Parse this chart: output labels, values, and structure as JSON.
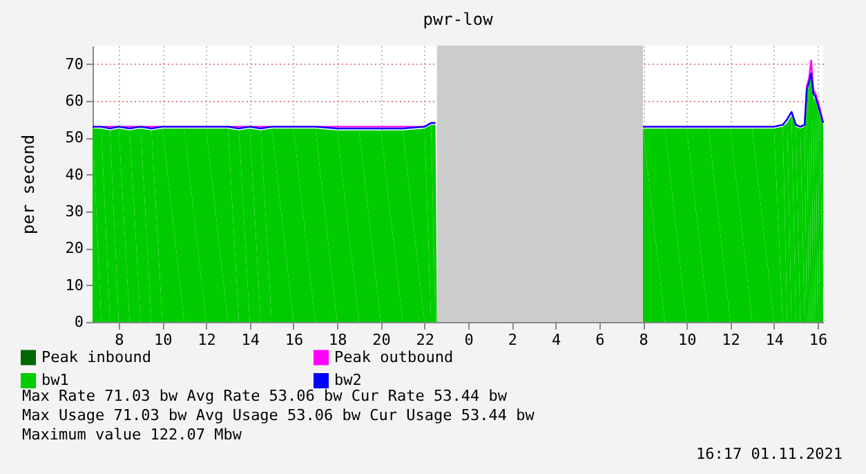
{
  "chart_data": {
    "type": "line",
    "title": "pwr-low",
    "ylabel": "per second",
    "x": [
      "2021-10-31T06:48",
      "2021-10-31T07:12",
      "2021-10-31T07:36",
      "2021-10-31T08:00",
      "2021-10-31T08:30",
      "2021-10-31T09:00",
      "2021-10-31T09:30",
      "2021-10-31T10:00",
      "2021-10-31T11:00",
      "2021-10-31T12:00",
      "2021-10-31T13:00",
      "2021-10-31T13:30",
      "2021-10-31T14:00",
      "2021-10-31T14:30",
      "2021-10-31T15:00",
      "2021-10-31T16:00",
      "2021-10-31T17:00",
      "2021-10-31T18:00",
      "2021-10-31T19:00",
      "2021-10-31T20:00",
      "2021-10-31T21:00",
      "2021-10-31T22:00",
      "2021-10-31T22:18",
      "2021-10-31T22:30",
      "2021-10-31T22:34",
      "2021-11-01T08:00",
      "2021-11-01T09:00",
      "2021-11-01T10:00",
      "2021-11-01T11:00",
      "2021-11-01T12:00",
      "2021-11-01T13:00",
      "2021-11-01T14:00",
      "2021-11-01T14:24",
      "2021-11-01T14:36",
      "2021-11-01T14:48",
      "2021-11-01T15:00",
      "2021-11-01T15:12",
      "2021-11-01T15:24",
      "2021-11-01T15:30",
      "2021-11-01T15:36",
      "2021-11-01T15:42",
      "2021-11-01T15:48",
      "2021-11-01T15:54",
      "2021-11-01T16:00",
      "2021-11-01T16:06",
      "2021-11-01T16:15"
    ],
    "series": [
      {
        "name": "Peak inbound",
        "color": "#006600",
        "values": [
          null,
          null,
          null,
          null,
          null,
          null,
          null,
          null,
          null,
          null,
          null,
          null,
          null,
          null,
          null,
          null,
          null,
          null,
          null,
          null,
          null,
          null,
          null,
          null,
          null,
          null,
          null,
          null,
          null,
          null,
          null,
          null,
          null,
          null,
          null,
          null,
          null,
          null,
          null,
          null,
          null,
          null,
          null,
          null,
          null,
          null
        ]
      },
      {
        "name": "bw1",
        "type": "area",
        "color": "#00cc00",
        "values": [
          52.5,
          52.5,
          52,
          52.5,
          52,
          52.5,
          52,
          52.5,
          52.5,
          52.5,
          52.5,
          52,
          52.5,
          52,
          52.5,
          52.5,
          52.5,
          52,
          52,
          52,
          52,
          52.5,
          53.5,
          53.5,
          null,
          52.5,
          52.5,
          52.5,
          52.5,
          52.5,
          52.5,
          52.5,
          53,
          54,
          56,
          53,
          52.5,
          53,
          62,
          64,
          66.5,
          61,
          60,
          58,
          56,
          53.5
        ]
      },
      {
        "name": "Peak outbound",
        "color": "#ff00ff",
        "values": [
          53,
          53,
          53,
          53,
          53,
          53,
          53,
          53,
          53,
          53,
          53,
          53,
          53,
          53,
          53,
          53,
          53,
          53,
          53,
          53,
          53,
          53,
          54,
          54,
          null,
          53,
          53,
          53,
          53,
          53,
          53,
          53,
          53.5,
          55,
          57,
          53.5,
          53,
          53.5,
          64,
          66,
          71,
          63,
          62,
          60,
          58,
          54
        ]
      },
      {
        "name": "bw2",
        "color": "#0000ff",
        "values": [
          53,
          53,
          52.5,
          53,
          52.5,
          53,
          52.5,
          53,
          53,
          53,
          53,
          52.5,
          53,
          52.5,
          53,
          53,
          53,
          52.5,
          52.5,
          52.5,
          52.5,
          53,
          54,
          54,
          null,
          53,
          53,
          53,
          53,
          53,
          53,
          53,
          53.5,
          55,
          57,
          53.5,
          53,
          53.5,
          63,
          65,
          67.5,
          62,
          61,
          59,
          57,
          54
        ]
      }
    ],
    "xlim": [
      "2021-10-31T06:48",
      "2021-11-01T16:15"
    ],
    "xticks": [
      {
        "value": "2021-10-31T08:00",
        "label": "8"
      },
      {
        "value": "2021-10-31T10:00",
        "label": "10"
      },
      {
        "value": "2021-10-31T12:00",
        "label": "12"
      },
      {
        "value": "2021-10-31T14:00",
        "label": "14"
      },
      {
        "value": "2021-10-31T16:00",
        "label": "16"
      },
      {
        "value": "2021-10-31T18:00",
        "label": "18"
      },
      {
        "value": "2021-10-31T20:00",
        "label": "20"
      },
      {
        "value": "2021-10-31T22:00",
        "label": "22"
      },
      {
        "value": "2021-11-01T00:00",
        "label": "0"
      },
      {
        "value": "2021-11-01T02:00",
        "label": "2"
      },
      {
        "value": "2021-11-01T04:00",
        "label": "4"
      },
      {
        "value": "2021-11-01T06:00",
        "label": "6"
      },
      {
        "value": "2021-11-01T08:00",
        "label": "8"
      },
      {
        "value": "2021-11-01T10:00",
        "label": "10"
      },
      {
        "value": "2021-11-01T12:00",
        "label": "12"
      },
      {
        "value": "2021-11-01T14:00",
        "label": "14"
      },
      {
        "value": "2021-11-01T16:00",
        "label": "16"
      }
    ],
    "ylim": [
      0,
      75
    ],
    "yticks": [
      0,
      10,
      20,
      30,
      40,
      50,
      60,
      70
    ],
    "bands": [
      {
        "axis": "x",
        "from": "2021-10-31T22:34",
        "to": "2021-11-01T08:00",
        "color": "#cccccc"
      }
    ],
    "grid": true,
    "legend": "bottom",
    "line_style": "solid",
    "annotations": [
      "Max Rate   71.03  bw  Avg Rate   53.06  bw  Cur Rate   53.44  bw",
      "Max  Usage 71.03  bw  Avg  Usage 53.06  bw  Cur  Usage 53.44  bw",
      "Maximum value 122.07 Mbw",
      "16:17 01.11.2021"
    ]
  }
}
